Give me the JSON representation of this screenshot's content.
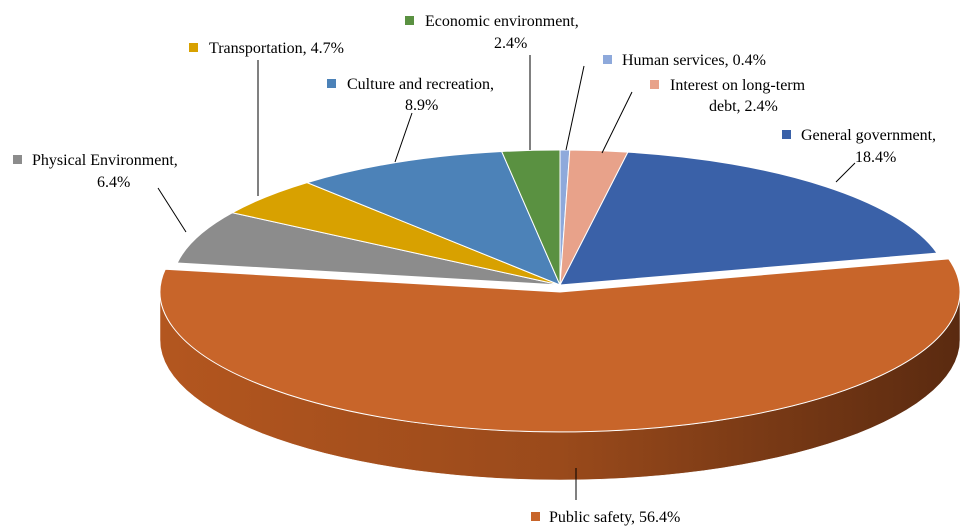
{
  "chart_data": {
    "type": "pie",
    "style": "3d-exploded-perspective",
    "title": "",
    "slices": [
      {
        "label": "Human services",
        "value": 0.4,
        "display": "0.4%",
        "color": "#8EA9DB"
      },
      {
        "label": "Interest on long-term debt",
        "value": 2.4,
        "display": "2.4%",
        "color": "#E8A28A"
      },
      {
        "label": "General government",
        "value": 18.4,
        "display": "18.4%",
        "color": "#3A61A8"
      },
      {
        "label": "Public safety",
        "value": 56.4,
        "display": "56.4%",
        "color": "#C8652A"
      },
      {
        "label": "Physical Environment",
        "value": 6.4,
        "display": "6.4%",
        "color": "#8C8C8C"
      },
      {
        "label": "Transportation",
        "value": 4.7,
        "display": "4.7%",
        "color": "#D8A100"
      },
      {
        "label": "Culture and recreation",
        "value": 8.9,
        "display": "8.9%",
        "color": "#4C82B8"
      },
      {
        "label": "Economic environment",
        "value": 2.4,
        "display": "2.4%",
        "color": "#5A9141"
      }
    ]
  },
  "labels": {
    "human_services": {
      "line1": "Human services, 0.4%"
    },
    "interest": {
      "line1": "Interest on long-term",
      "line2": "debt, 2.4%"
    },
    "general_government": {
      "line1": "General government,",
      "line2": "18.4%"
    },
    "public_safety": {
      "line1": "Public safety, 56.4%"
    },
    "physical_environment": {
      "line1": "Physical Environment,",
      "line2": "6.4%"
    },
    "transportation": {
      "line1": "Transportation, 4.7%"
    },
    "culture": {
      "line1": "Culture and recreation,",
      "line2": "8.9%"
    },
    "economic": {
      "line1": "Economic environment,",
      "line2": "2.4%"
    }
  }
}
